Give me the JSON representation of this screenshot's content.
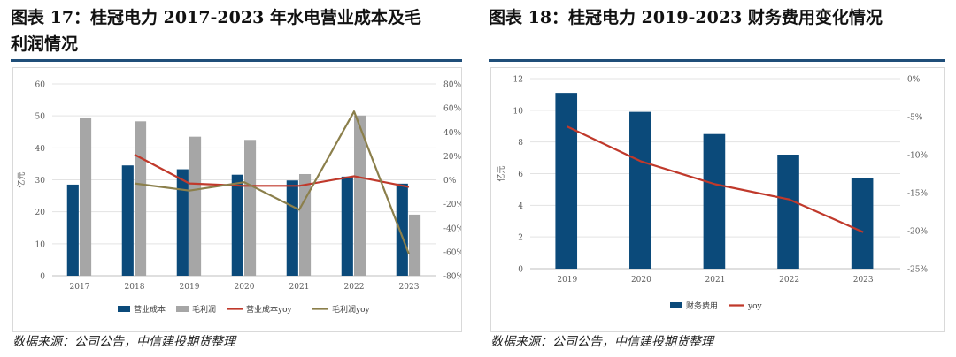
{
  "left": {
    "heading_line1": "图表 17：桂冠电力 2017-2023 年水电营业成本及毛",
    "heading_line2": "利润情况",
    "source": "数据来源：公司公告，中信建投期货整理"
  },
  "right": {
    "heading": "图表 18：桂冠电力 2019-2023 财务费用变化情况",
    "source": "数据来源：公司公告，中信建投期货整理"
  },
  "colors": {
    "navy": "#0b4a7a",
    "gray": "#a6a6a6",
    "red": "#c0392b",
    "olive": "#8b7f4b",
    "rule": "#1f4e79"
  },
  "chart_data": [
    {
      "type": "bar",
      "categories": [
        "2017",
        "2018",
        "2019",
        "2020",
        "2021",
        "2022",
        "2023"
      ],
      "ylabel": "亿元",
      "ylim": [
        0,
        60
      ],
      "yticks": [
        "0",
        "10",
        "20",
        "30",
        "40",
        "50",
        "60"
      ],
      "y2lim": [
        -80,
        80
      ],
      "y2ticks": [
        "-80%",
        "-60%",
        "-40%",
        "-20%",
        "0%",
        "20%",
        "40%",
        "60%",
        "80%"
      ],
      "series": [
        {
          "name": "营业成本",
          "kind": "bar",
          "values": [
            28.5,
            34.5,
            33.3,
            31.6,
            29.8,
            31.0,
            28.8
          ]
        },
        {
          "name": "毛利润",
          "kind": "bar",
          "values": [
            49.5,
            48.3,
            43.5,
            42.5,
            31.8,
            50.1,
            19.1
          ]
        },
        {
          "name": "营业成本yoy",
          "kind": "line",
          "axis": "right",
          "values": [
            null,
            21,
            -3,
            -5,
            -5,
            3,
            -6
          ]
        },
        {
          "name": "毛利润yoy",
          "kind": "line",
          "axis": "right",
          "values": [
            null,
            -3,
            -9,
            -2,
            -25,
            57,
            -62
          ]
        }
      ],
      "legend_position": "bottom"
    },
    {
      "type": "bar",
      "categories": [
        "2019",
        "2020",
        "2021",
        "2022",
        "2023"
      ],
      "ylabel": "亿元",
      "ylim": [
        0,
        12
      ],
      "yticks": [
        "0",
        "2",
        "4",
        "6",
        "8",
        "10",
        "12"
      ],
      "y2lim": [
        -25,
        0
      ],
      "y2ticks": [
        "-25%",
        "-20%",
        "-15%",
        "-10%",
        "-5%",
        "0%"
      ],
      "series": [
        {
          "name": "财务费用",
          "kind": "bar",
          "values": [
            11.1,
            9.9,
            8.5,
            7.2,
            5.7
          ]
        },
        {
          "name": "yoy",
          "kind": "line",
          "axis": "right",
          "values": [
            -6.3,
            -10.9,
            -13.9,
            -15.9,
            -20.2
          ]
        }
      ],
      "legend_position": "bottom"
    }
  ]
}
